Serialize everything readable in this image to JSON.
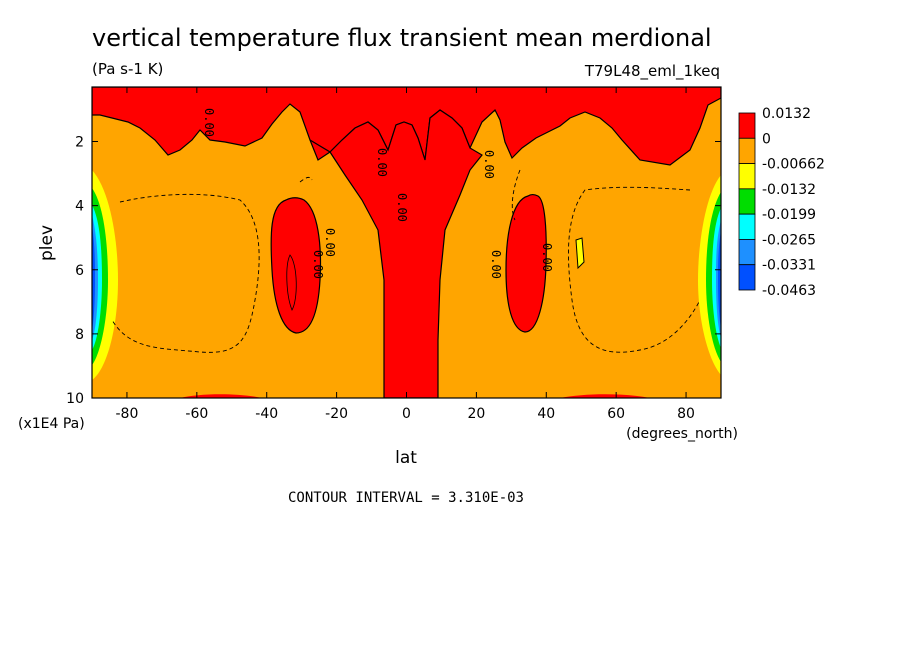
{
  "chart_data": {
    "type": "heatmap",
    "title": "vertical temperature flux transient mean merdional",
    "units": "(Pa s-1 K)",
    "run_label": "T79L48_eml_1keq",
    "xlabel": "lat",
    "ylabel": "plev",
    "x_units": "(degrees_north)",
    "y_units": "(x1E4 Pa)",
    "xlim": [
      -90,
      90
    ],
    "ylim": [
      10,
      0.3
    ],
    "x_ticks": [
      "-80",
      "-60",
      "-40",
      "-20",
      "0",
      "20",
      "40",
      "60",
      "80"
    ],
    "y_ticks": [
      "2",
      "4",
      "6",
      "8",
      "10"
    ],
    "contour_interval_text": "CONTOUR INTERVAL = 3.310E-03",
    "colorbar": {
      "labels": [
        "0.0132",
        "0",
        "-0.00662",
        "-0.0132",
        "-0.0199",
        "-0.0265",
        "-0.0331",
        "-0.0463"
      ],
      "colors": [
        "#ff0000",
        "#ffa500",
        "#ffff00",
        "#00dd00",
        "#00ffff",
        "#1e90ff",
        "#0050ff"
      ]
    },
    "contour_labels": [
      "0.00",
      "0.00",
      "0.00",
      "0.00",
      "0.00",
      "0.00",
      "0.00",
      "0.00"
    ],
    "regions": [
      {
        "level": "positive",
        "color": "#ff0000",
        "lat_range": [
          -12,
          12
        ],
        "plev_range": [
          1.2,
          10
        ]
      },
      {
        "level": "positive",
        "color": "#ff0000",
        "lat_range": [
          -36,
          -26
        ],
        "plev_range": [
          3.8,
          8.6
        ]
      },
      {
        "level": "positive",
        "color": "#ff0000",
        "lat_range": [
          28,
          38
        ],
        "plev_range": [
          3.6,
          8.4
        ]
      },
      {
        "level": "negative",
        "color": "#0050ff",
        "lat_range": [
          -90,
          -86
        ],
        "plev_range": [
          4,
          8
        ]
      },
      {
        "level": "negative",
        "color": "#0050ff",
        "lat_range": [
          86,
          90
        ],
        "plev_range": [
          4,
          8
        ]
      }
    ]
  }
}
